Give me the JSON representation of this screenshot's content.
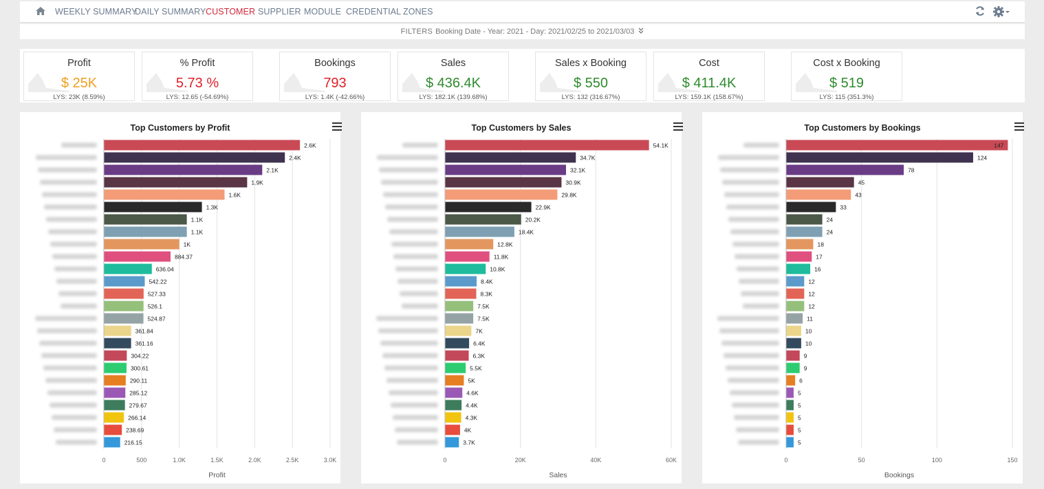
{
  "nav": {
    "items": [
      "WEEKLY SUMMARY",
      "DAILY SUMMARY",
      "CUSTOMER",
      "SUPPLIER",
      "MODULE",
      "CREDENTIAL",
      "ZONES"
    ],
    "active": "CUSTOMER",
    "icons": [
      "home-icon",
      "refresh-icon",
      "gear-icon"
    ]
  },
  "filters": {
    "label": "FILTERS",
    "text": "Booking Date - Year: 2021 - Day: 2021/02/25 to 2021/03/03"
  },
  "kpis": [
    {
      "title": "Profit",
      "value": "$ 25K",
      "lys": "LYS: 23K (8.59%)",
      "color": "#f0a020"
    },
    {
      "title": "% Profit",
      "value": "5.73 %",
      "lys": "LYS: 12.65 (-54.69%)",
      "color": "#e0202a"
    },
    {
      "title": "Bookings",
      "value": "793",
      "lys": "LYS: 1.4K (-42.66%)",
      "color": "#e0202a"
    },
    {
      "title": "Sales",
      "value": "$ 436.4K",
      "lys": "LYS: 182.1K (139.68%)",
      "color": "#2e8b2e"
    },
    {
      "title": "Sales x Booking",
      "value": "$ 550",
      "lys": "LYS: 132 (316.67%)",
      "color": "#2e8b2e"
    },
    {
      "title": "Cost",
      "value": "$ 411.4K",
      "lys": "LYS: 159.1K (158.67%)",
      "color": "#2e8b2e"
    },
    {
      "title": "Cost x Booking",
      "value": "$ 519",
      "lys": "LYS: 115 (351.3%)",
      "color": "#2e8b2e"
    }
  ],
  "chart_data": [
    {
      "type": "bar",
      "orientation": "horizontal",
      "title": "Top Customers by Profit",
      "xlabel": "Profit",
      "xlim": [
        0,
        3000
      ],
      "ticks": [
        0,
        500,
        1000,
        1500,
        2000,
        2500,
        3000
      ],
      "tick_labels": [
        "0",
        "500",
        "1.0K",
        "1.5K",
        "2.0K",
        "2.5K",
        "3.0K"
      ],
      "values": [
        2600,
        2400,
        2100,
        1900,
        1600,
        1300,
        1100,
        1100,
        1000,
        884.37,
        636.04,
        542.22,
        527.33,
        526.1,
        524.87,
        361.84,
        361.16,
        304.22,
        300.61,
        290.11,
        285.12,
        279.67,
        266.14,
        238.69,
        216.15
      ],
      "labels": [
        "2.6K",
        "2.4K",
        "2.1K",
        "1.9K",
        "1.6K",
        "1.3K",
        "1.1K",
        "1.1K",
        "1K",
        "884.37",
        "636.04",
        "542.22",
        "527.33",
        "526.1",
        "524.87",
        "361.84",
        "361.16",
        "304.22",
        "300.61",
        "290.11",
        "285.12",
        "279.67",
        "266.14",
        "238.69",
        "216.15"
      ]
    },
    {
      "type": "bar",
      "orientation": "horizontal",
      "title": "Top Customers by Sales",
      "xlabel": "Sales",
      "xlim": [
        0,
        60000
      ],
      "ticks": [
        0,
        20000,
        40000,
        60000
      ],
      "tick_labels": [
        "0",
        "20K",
        "40K",
        "60K"
      ],
      "values": [
        54100,
        34700,
        32100,
        30900,
        29800,
        22900,
        20200,
        18400,
        12800,
        11800,
        10800,
        8400,
        8300,
        7500,
        7500,
        7000,
        6400,
        6300,
        5500,
        5000,
        4600,
        4400,
        4300,
        4000,
        3700
      ],
      "labels": [
        "54.1K",
        "34.7K",
        "32.1K",
        "30.9K",
        "29.8K",
        "22.9K",
        "20.2K",
        "18.4K",
        "12.8K",
        "11.8K",
        "10.8K",
        "8.4K",
        "8.3K",
        "7.5K",
        "7.5K",
        "7K",
        "6.4K",
        "6.3K",
        "5.5K",
        "5K",
        "4.6K",
        "4.4K",
        "4.3K",
        "4K",
        "3.7K"
      ]
    },
    {
      "type": "bar",
      "orientation": "horizontal",
      "title": "Top Customers by Bookings",
      "xlabel": "Bookings",
      "xlim": [
        0,
        150
      ],
      "ticks": [
        0,
        50,
        100,
        150
      ],
      "tick_labels": [
        "0",
        "50",
        "100",
        "150"
      ],
      "values": [
        147,
        124,
        78,
        45,
        43,
        33,
        24,
        24,
        18,
        17,
        16,
        12,
        12,
        12,
        11,
        10,
        10,
        9,
        9,
        6,
        5,
        5,
        5,
        5,
        5
      ],
      "labels": [
        "147",
        "124",
        "78",
        "45",
        "43",
        "33",
        "24",
        "24",
        "18",
        "17",
        "16",
        "12",
        "12",
        "12",
        "11",
        "10",
        "10",
        "9",
        "9",
        "6",
        "5",
        "5",
        "5",
        "5",
        "5"
      ]
    }
  ],
  "bar_colors": [
    "#c94a55",
    "#3f3350",
    "#6a3c85",
    "#5a3545",
    "#f39c77",
    "#2a2a2a",
    "#4c5848",
    "#7ea0b2",
    "#e3975f",
    "#e0507f",
    "#1ebc9c",
    "#5b9bcb",
    "#e26456",
    "#95c07c",
    "#95a3a5",
    "#ead58a",
    "#344a5e",
    "#c2485a",
    "#2ecc71",
    "#e67e22",
    "#9b59b6",
    "#3e7c5e",
    "#f1c40f",
    "#e74c3c",
    "#3498db"
  ]
}
